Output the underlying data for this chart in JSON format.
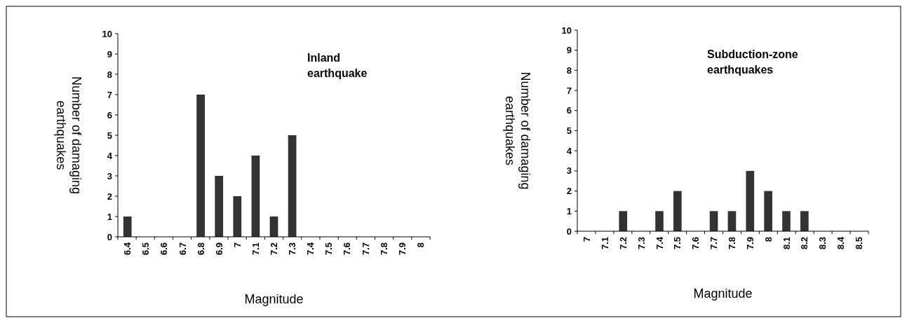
{
  "chart_data": [
    {
      "type": "bar",
      "categories": [
        "6.4",
        "6.5",
        "6.6",
        "6.7",
        "6.8",
        "6.9",
        "7",
        "7.1",
        "7.2",
        "7.3",
        "7.4",
        "7.5",
        "7.6",
        "7.7",
        "7.8",
        "7.9",
        "8"
      ],
      "values": [
        1,
        0,
        0,
        0,
        7,
        3,
        2,
        4,
        1,
        5,
        0,
        0,
        0,
        0,
        0,
        0,
        0
      ],
      "color": "#333333",
      "xlabel": "Magnitude",
      "ylabel": "Number of damaging earthquakes",
      "ylim": [
        0,
        10
      ],
      "yticks": [
        0,
        1,
        2,
        3,
        4,
        5,
        6,
        7,
        8,
        9,
        10
      ],
      "annotations": [
        "Inland earthquake"
      ]
    },
    {
      "type": "bar",
      "categories": [
        "7",
        "7.1",
        "7.2",
        "7.3",
        "7.4",
        "7.5",
        "7.6",
        "7.7",
        "7.8",
        "7.9",
        "8",
        "8.1",
        "8.2",
        "8.3",
        "8.4",
        "8.5"
      ],
      "values": [
        0,
        0,
        1,
        0,
        1,
        2,
        0,
        1,
        1,
        3,
        2,
        1,
        1,
        0,
        0,
        0
      ],
      "color": "#333333",
      "xlabel": "Magnitude",
      "ylabel": "Number of damaging earthquakes",
      "ylim": [
        0,
        10
      ],
      "yticks": [
        0,
        1,
        2,
        3,
        4,
        5,
        6,
        7,
        8,
        9,
        10
      ],
      "annotations": [
        "Subduction-zone earthquakes"
      ]
    }
  ]
}
